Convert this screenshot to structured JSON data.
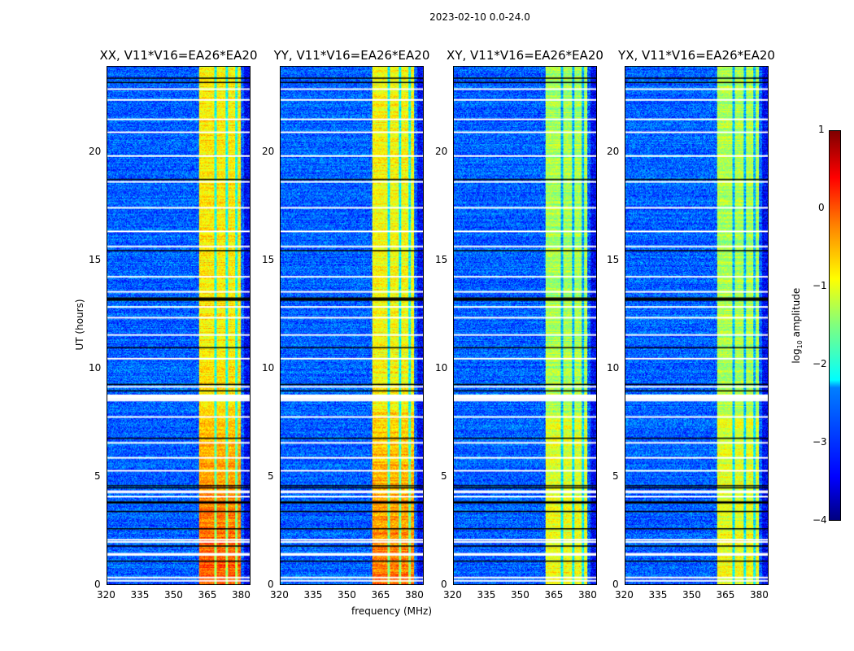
{
  "title": "2023-02-10 0.0-24.0",
  "chart_data": {
    "type": "heatmap",
    "title": "2023-02-10 0.0-24.0",
    "xlabel": "frequency (MHz)",
    "ylabel": "UT (hours)",
    "xlim": [
      320,
      384
    ],
    "ylim": [
      0,
      24
    ],
    "xticks": [
      320,
      335,
      350,
      365,
      380
    ],
    "yticks": [
      0,
      5,
      10,
      15,
      20
    ],
    "panels": [
      {
        "title": "XX, V11*V16=EA26*EA20",
        "band_level": -0.8,
        "low_ut_boost": 0.6
      },
      {
        "title": "YY, V11*V16=EA26*EA20",
        "band_level": -0.9,
        "low_ut_boost": 0.5
      },
      {
        "title": "XY, V11*V16=EA26*EA20",
        "band_level": -1.3,
        "low_ut_boost": 0.2
      },
      {
        "title": "YX, V11*V16=EA26*EA20",
        "band_level": -1.3,
        "low_ut_boost": 0.2
      }
    ],
    "rfi_band_mhz": [
      361,
      380
    ],
    "background_level": -2.9,
    "colorbar": {
      "label": "log10 amplitude",
      "label_main": "log",
      "label_sub": "10",
      "label_rest": " amplitude",
      "range": [
        -4,
        1
      ],
      "ticks": [
        "1",
        "0",
        "−1",
        "−2",
        "−3",
        "−4"
      ]
    }
  },
  "tick_labels": {
    "x": [
      "320",
      "335",
      "350",
      "365",
      "380"
    ],
    "y": [
      "0",
      "5",
      "10",
      "15",
      "20"
    ]
  }
}
